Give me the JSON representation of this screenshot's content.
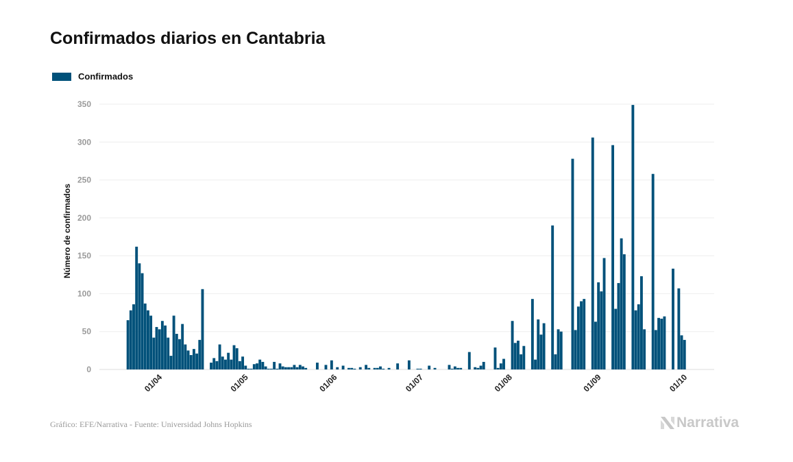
{
  "chart_data": {
    "type": "bar",
    "title": "Confirmados diarios en Cantabria",
    "xlabel": "",
    "ylabel": "Número de confirmados",
    "ylim": [
      0,
      350
    ],
    "yticks": [
      0,
      50,
      100,
      150,
      200,
      250,
      300,
      350
    ],
    "xticks": [
      "01/04",
      "01/05",
      "01/06",
      "01/07",
      "01/08",
      "01/09",
      "01/10"
    ],
    "grid": true,
    "legend_position": "top-left",
    "series": [
      {
        "name": "Confirmados",
        "color": "#00517a",
        "x": [
          "20/03",
          "21/03",
          "22/03",
          "23/03",
          "24/03",
          "25/03",
          "26/03",
          "27/03",
          "28/03",
          "29/03",
          "30/03",
          "31/03",
          "01/04",
          "02/04",
          "03/04",
          "04/04",
          "05/04",
          "06/04",
          "07/04",
          "08/04",
          "09/04",
          "10/04",
          "11/04",
          "12/04",
          "13/04",
          "14/04",
          "15/04",
          "16/04",
          "17/04",
          "18/04",
          "19/04",
          "20/04",
          "21/04",
          "22/04",
          "23/04",
          "24/04",
          "25/04",
          "26/04",
          "27/04",
          "28/04",
          "29/04",
          "30/04",
          "01/05",
          "02/05",
          "03/05",
          "04/05",
          "05/05",
          "06/05",
          "07/05",
          "08/05",
          "09/05",
          "10/05",
          "11/05",
          "12/05",
          "13/05",
          "14/05",
          "15/05",
          "16/05",
          "17/05",
          "18/05",
          "19/05",
          "20/05",
          "21/05",
          "22/05",
          "23/05",
          "24/05",
          "25/05",
          "26/05",
          "27/05",
          "28/05",
          "29/05",
          "30/05",
          "31/05",
          "01/06",
          "02/06",
          "03/06",
          "04/06",
          "05/06",
          "06/06",
          "07/06",
          "08/06",
          "09/06",
          "10/06",
          "11/06",
          "12/06",
          "13/06",
          "14/06",
          "15/06",
          "16/06",
          "17/06",
          "18/06",
          "19/06",
          "20/06",
          "21/06",
          "22/06",
          "23/06",
          "24/06",
          "25/06",
          "26/06",
          "27/06",
          "28/06",
          "29/06",
          "30/06",
          "01/07",
          "02/07",
          "03/07",
          "04/07",
          "05/07",
          "06/07",
          "07/07",
          "08/07",
          "09/07",
          "10/07",
          "11/07",
          "12/07",
          "13/07",
          "14/07",
          "15/07",
          "16/07",
          "17/07",
          "18/07",
          "19/07",
          "20/07",
          "21/07",
          "22/07",
          "23/07",
          "24/07",
          "25/07",
          "26/07",
          "27/07",
          "28/07",
          "29/07",
          "30/07",
          "31/07",
          "01/08",
          "02/08",
          "03/08",
          "04/08",
          "05/08",
          "06/08",
          "07/08",
          "08/08",
          "09/08",
          "10/08",
          "11/08",
          "12/08",
          "13/08",
          "14/08",
          "15/08",
          "16/08",
          "17/08",
          "18/08",
          "19/08",
          "20/08",
          "21/08",
          "22/08",
          "23/08",
          "24/08",
          "25/08",
          "26/08",
          "27/08",
          "28/08",
          "29/08",
          "30/08",
          "31/08",
          "01/09",
          "02/09",
          "03/09",
          "04/09",
          "05/09",
          "06/09",
          "07/09",
          "08/09",
          "09/09",
          "10/09",
          "11/09",
          "12/09",
          "13/09",
          "14/09",
          "15/09",
          "16/09",
          "17/09",
          "18/09",
          "19/09",
          "20/09",
          "21/09",
          "22/09",
          "23/09",
          "24/09",
          "25/09",
          "26/09",
          "27/09",
          "28/09",
          "29/09",
          "30/09"
        ],
        "values": [
          65,
          78,
          86,
          162,
          140,
          127,
          87,
          78,
          71,
          42,
          56,
          53,
          64,
          58,
          42,
          18,
          71,
          47,
          40,
          60,
          33,
          25,
          19,
          27,
          21,
          39,
          106,
          0,
          0,
          9,
          15,
          11,
          33,
          17,
          13,
          22,
          13,
          32,
          28,
          11,
          17,
          5,
          1,
          1,
          7,
          8,
          13,
          10,
          4,
          1,
          1,
          10,
          1,
          8,
          4,
          3,
          3,
          3,
          6,
          3,
          6,
          4,
          2,
          0,
          0,
          0,
          9,
          0,
          0,
          6,
          0,
          12,
          0,
          3,
          0,
          5,
          0,
          2,
          2,
          1,
          0,
          3,
          0,
          6,
          2,
          0,
          2,
          2,
          4,
          1,
          0,
          2,
          0,
          0,
          8,
          0,
          0,
          0,
          12,
          0,
          0,
          1,
          1,
          0,
          0,
          5,
          0,
          2,
          0,
          0,
          0,
          0,
          6,
          1,
          4,
          2,
          2,
          0,
          0,
          23,
          0,
          3,
          2,
          5,
          10,
          0,
          0,
          0,
          29,
          2,
          8,
          14,
          0,
          0,
          64,
          35,
          38,
          20,
          31,
          0,
          0,
          93,
          13,
          66,
          46,
          61,
          0,
          0,
          190,
          20,
          53,
          50,
          0,
          0,
          0,
          278,
          52,
          83,
          90,
          93,
          0,
          0,
          306,
          63,
          115,
          103,
          147,
          0,
          0,
          296,
          80,
          114,
          173,
          152,
          0,
          0,
          349,
          78,
          86,
          123,
          53,
          0,
          0,
          258,
          52,
          68,
          67,
          70,
          0,
          0,
          133,
          0,
          107,
          45,
          39
        ]
      }
    ]
  },
  "footer": {
    "credit": "Gráfico: EFE/Narrativa - Fuente: Universidad Johns Hopkins",
    "logo_text": "Narrativa"
  }
}
